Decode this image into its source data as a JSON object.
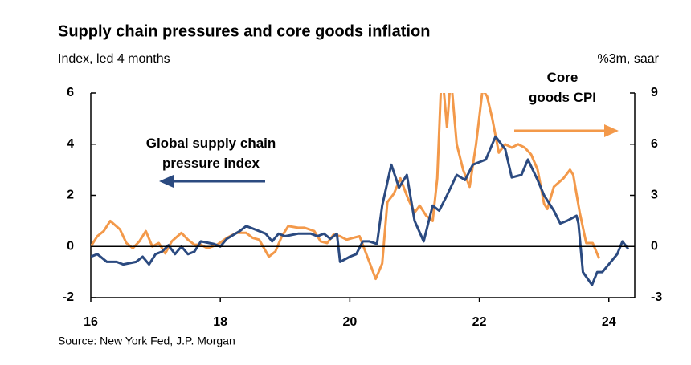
{
  "chart_data": {
    "type": "line",
    "title": "Supply chain pressures and core goods inflation",
    "subtitle": "Index, led 4 months",
    "y2_label": "%3m, saar",
    "source": "Source: New York Fed, J.P. Morgan",
    "xlim": [
      16,
      24.4
    ],
    "xticks": [
      16,
      18,
      20,
      22,
      24
    ],
    "ylim": [
      -2,
      6
    ],
    "yticks": [
      -2,
      0,
      2,
      4,
      6
    ],
    "y2lim": [
      -3,
      9
    ],
    "y2ticks": [
      -3,
      0,
      3,
      6,
      9
    ],
    "series": [
      {
        "name": "Global supply chain pressure index",
        "color": "#2b4a80",
        "x": [
          16.0,
          16.1,
          16.25,
          16.4,
          16.5,
          16.7,
          16.8,
          16.9,
          17.0,
          17.1,
          17.2,
          17.3,
          17.4,
          17.5,
          17.6,
          17.7,
          17.9,
          18.0,
          18.1,
          18.3,
          18.4,
          18.5,
          18.7,
          18.8,
          18.9,
          19.0,
          19.2,
          19.4,
          19.5,
          19.6,
          19.7,
          19.8,
          19.85,
          20.0,
          20.1,
          20.2,
          20.3,
          20.42,
          20.5,
          20.64,
          20.76,
          20.88,
          21.0,
          21.14,
          21.28,
          21.38,
          21.5,
          21.65,
          21.78,
          21.9,
          22.0,
          22.1,
          22.25,
          22.4,
          22.5,
          22.65,
          22.75,
          22.9,
          23.0,
          23.15,
          23.25,
          23.35,
          23.5,
          23.53,
          23.6,
          23.74,
          23.82,
          23.9,
          24.03,
          24.13,
          24.21,
          24.3
        ],
        "values": [
          -0.4,
          -0.3,
          -0.6,
          -0.6,
          -0.7,
          -0.6,
          -0.4,
          -0.7,
          -0.3,
          -0.2,
          0.05,
          -0.3,
          0.0,
          -0.3,
          -0.2,
          0.2,
          0.1,
          0.0,
          0.3,
          0.6,
          0.8,
          0.7,
          0.5,
          0.2,
          0.5,
          0.4,
          0.5,
          0.5,
          0.4,
          0.5,
          0.3,
          0.5,
          -0.6,
          -0.4,
          -0.3,
          0.2,
          0.2,
          0.1,
          1.6,
          3.2,
          2.3,
          2.8,
          1.0,
          0.2,
          1.6,
          1.4,
          2.0,
          2.8,
          2.6,
          3.2,
          3.3,
          3.4,
          4.3,
          3.8,
          2.7,
          2.8,
          3.4,
          2.6,
          2.0,
          1.4,
          0.9,
          1.0,
          1.2,
          0.9,
          -1.0,
          -1.5,
          -1.0,
          -1.0,
          -0.6,
          -0.3,
          0.2,
          -0.1
        ]
      },
      {
        "name": "Core goods CPI",
        "color": "#f3994a",
        "axis": "y2",
        "x": [
          16.0,
          16.1,
          16.2,
          16.3,
          16.45,
          16.55,
          16.65,
          16.75,
          16.85,
          16.95,
          17.05,
          17.15,
          17.25,
          17.4,
          17.5,
          17.6,
          17.7,
          17.8,
          17.95,
          18.1,
          18.25,
          18.4,
          18.5,
          18.6,
          18.75,
          18.85,
          18.95,
          19.05,
          19.2,
          19.3,
          19.45,
          19.55,
          19.65,
          19.75,
          19.85,
          19.95,
          20.05,
          20.15,
          20.3,
          20.4,
          20.5,
          20.58,
          20.68,
          20.78,
          20.9,
          21.0,
          21.08,
          21.18,
          21.28,
          21.35,
          21.42,
          21.5,
          21.56,
          21.65,
          21.75,
          21.85,
          21.95,
          22.05,
          22.12,
          22.2,
          22.3,
          22.4,
          22.5,
          22.6,
          22.7,
          22.8,
          22.9,
          23.0,
          23.05,
          23.15,
          23.3,
          23.4,
          23.45,
          23.55,
          23.65,
          23.75,
          23.85
        ],
        "values": [
          0.0,
          0.6,
          0.9,
          1.5,
          1.0,
          0.2,
          -0.1,
          0.3,
          0.9,
          0.0,
          0.2,
          -0.4,
          0.3,
          0.8,
          0.4,
          0.1,
          0.1,
          -0.1,
          0.1,
          0.5,
          0.8,
          0.8,
          0.5,
          0.4,
          -0.6,
          -0.3,
          0.6,
          1.2,
          1.1,
          1.1,
          0.9,
          0.3,
          0.2,
          0.7,
          0.6,
          0.4,
          0.5,
          0.6,
          -0.9,
          -1.9,
          -1.0,
          2.6,
          3.1,
          4.0,
          2.8,
          2.0,
          2.4,
          1.8,
          1.5,
          4.0,
          10.5,
          7.0,
          10.0,
          6.0,
          4.5,
          3.5,
          6.0,
          9.2,
          8.8,
          7.5,
          5.5,
          6.0,
          5.8,
          6.0,
          5.8,
          5.4,
          4.5,
          2.5,
          2.2,
          3.5,
          4.0,
          4.5,
          4.2,
          2.0,
          0.2,
          0.2,
          -0.7
        ]
      }
    ]
  }
}
